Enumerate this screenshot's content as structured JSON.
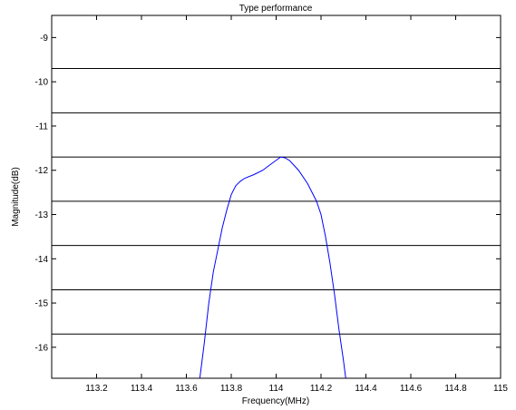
{
  "chart_data": {
    "type": "line",
    "title": "Type performance",
    "xlabel": "Frequency(MHz)",
    "ylabel": "Magnitude(dB)",
    "xlim": [
      113.0,
      115.0
    ],
    "ylim": [
      -16.7,
      -8.5
    ],
    "x_ticks": [
      113.2,
      113.4,
      113.6,
      113.8,
      114,
      114.2,
      114.4,
      114.6,
      114.8,
      115
    ],
    "y_ticks": [
      -9,
      -10,
      -11,
      -12,
      -13,
      -14,
      -15,
      -16
    ],
    "grid": false,
    "box": true,
    "reference_lines": [
      -9.7,
      -10.7,
      -11.7,
      -12.7,
      -13.7,
      -14.7,
      -15.7
    ],
    "series": [
      {
        "color": "#0000ff",
        "points": [
          [
            113.66,
            -16.7
          ],
          [
            113.68,
            -15.9
          ],
          [
            113.7,
            -15.0
          ],
          [
            113.72,
            -14.3
          ],
          [
            113.74,
            -13.8
          ],
          [
            113.76,
            -13.3
          ],
          [
            113.78,
            -12.9
          ],
          [
            113.8,
            -12.55
          ],
          [
            113.82,
            -12.35
          ],
          [
            113.84,
            -12.25
          ],
          [
            113.86,
            -12.18
          ],
          [
            113.9,
            -12.1
          ],
          [
            113.94,
            -12.0
          ],
          [
            113.98,
            -11.85
          ],
          [
            114.02,
            -11.7
          ],
          [
            114.04,
            -11.72
          ],
          [
            114.06,
            -11.78
          ],
          [
            114.1,
            -12.0
          ],
          [
            114.14,
            -12.3
          ],
          [
            114.18,
            -12.7
          ],
          [
            114.2,
            -13.0
          ],
          [
            114.22,
            -13.5
          ],
          [
            114.24,
            -14.1
          ],
          [
            114.26,
            -14.8
          ],
          [
            114.28,
            -15.6
          ],
          [
            114.3,
            -16.3
          ],
          [
            114.31,
            -16.7
          ]
        ]
      }
    ]
  }
}
